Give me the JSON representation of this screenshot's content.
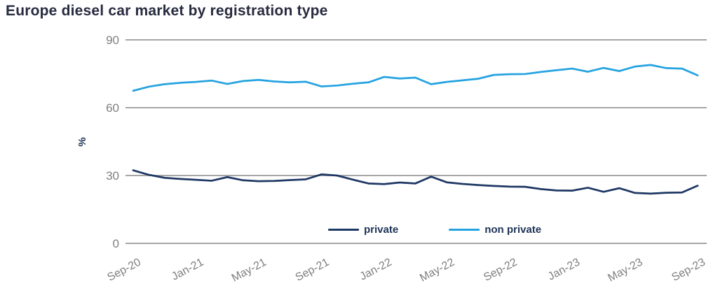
{
  "title": "Europe diesel car market by registration type",
  "colors": {
    "private_line": "#1f3864",
    "non_private_line": "#25a3e0",
    "title_text": "#272b3f",
    "axis_text": "#7f7f7f",
    "gridline": "#a6a6a6",
    "axis_label_text": "#1e3357"
  },
  "legend": {
    "items": [
      {
        "label": "private",
        "color": "#1f3864"
      },
      {
        "label": "non private",
        "color": "#25a3e0"
      }
    ]
  },
  "chart_data": {
    "type": "line",
    "title": "Europe diesel car market by registration type",
    "xlabel": "",
    "ylabel": "%",
    "ylim": [
      0,
      90
    ],
    "yticks": [
      0,
      30,
      60,
      90
    ],
    "grid": "horizontal",
    "legend_position": "bottom-center-inside",
    "x": [
      "Sep-20",
      "Oct-20",
      "Nov-20",
      "Dec-20",
      "Jan-21",
      "Feb-21",
      "Mar-21",
      "Apr-21",
      "May-21",
      "Jun-21",
      "Jul-21",
      "Aug-21",
      "Sep-21",
      "Oct-21",
      "Nov-21",
      "Dec-21",
      "Jan-22",
      "Feb-22",
      "Mar-22",
      "Apr-22",
      "May-22",
      "Jun-22",
      "Jul-22",
      "Aug-22",
      "Sep-22",
      "Oct-22",
      "Nov-22",
      "Dec-22",
      "Jan-23",
      "Feb-23",
      "Mar-23",
      "Apr-23",
      "May-23",
      "Jun-23",
      "Jul-23",
      "Aug-23",
      "Sep-23"
    ],
    "x_tick_labels": [
      "Sep-20",
      "Jan-21",
      "May-21",
      "Sep-21",
      "Jan-22",
      "May-22",
      "Sep-22",
      "Jan-23",
      "May-23",
      "Sep-23"
    ],
    "x_tick_every": 4,
    "series": [
      {
        "name": "private",
        "color": "#1f3864",
        "values": [
          32.3,
          30.3,
          29.0,
          28.5,
          28.1,
          27.7,
          29.3,
          27.9,
          27.5,
          27.6,
          28.0,
          28.3,
          30.5,
          30.0,
          28.2,
          26.5,
          26.2,
          26.9,
          26.5,
          29.5,
          27.0,
          26.3,
          25.8,
          25.4,
          25.1,
          25.0,
          24.0,
          23.4,
          23.3,
          24.6,
          22.8,
          24.4,
          22.3,
          22.0,
          22.4,
          22.5,
          25.5
        ]
      },
      {
        "name": "non private",
        "color": "#25a3e0",
        "values": [
          67.5,
          69.3,
          70.4,
          71.0,
          71.4,
          72.0,
          70.5,
          71.8,
          72.3,
          71.6,
          71.2,
          71.5,
          69.4,
          69.8,
          70.6,
          71.2,
          73.6,
          72.9,
          73.3,
          70.4,
          71.4,
          72.1,
          72.8,
          74.5,
          74.8,
          74.9,
          75.8,
          76.6,
          77.3,
          75.9,
          77.6,
          76.2,
          78.2,
          78.9,
          77.5,
          77.3,
          74.3
        ]
      }
    ]
  }
}
